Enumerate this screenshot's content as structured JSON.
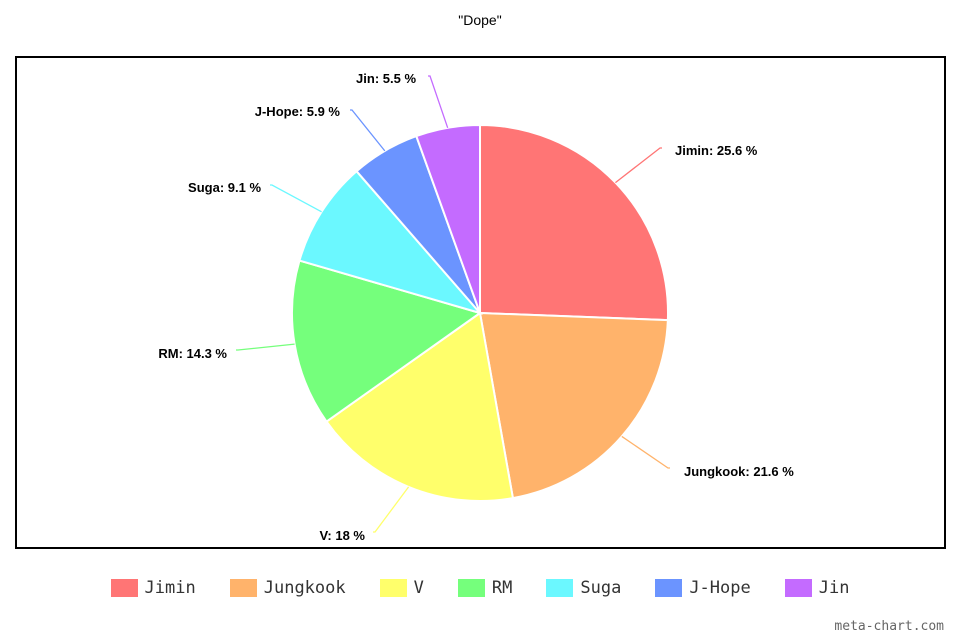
{
  "chart_data": {
    "type": "pie",
    "title": "\"Dope\"",
    "slices": [
      {
        "name": "Jimin",
        "value": 25.6,
        "label": "Jimin: 25.6 %",
        "color": "#ff7575"
      },
      {
        "name": "Jungkook",
        "value": 21.6,
        "label": "Jungkook: 21.6 %",
        "color": "#ffb36b"
      },
      {
        "name": "V",
        "value": 18,
        "label": "V: 18 %",
        "color": "#ffff6b"
      },
      {
        "name": "RM",
        "value": 14.3,
        "label": "RM: 14.3 %",
        "color": "#75ff7c"
      },
      {
        "name": "Suga",
        "value": 9.1,
        "label": "Suga: 9.1 %",
        "color": "#6bf8ff"
      },
      {
        "name": "J-Hope",
        "value": 5.9,
        "label": "J-Hope: 5.9 %",
        "color": "#6b94ff"
      },
      {
        "name": "Jin",
        "value": 5.5,
        "label": "Jin: 5.5 %",
        "color": "#c46bff"
      }
    ],
    "legend_position": "bottom",
    "start_angle": "12 o'clock",
    "direction": "clockwise"
  },
  "watermark": "meta-chart.com"
}
